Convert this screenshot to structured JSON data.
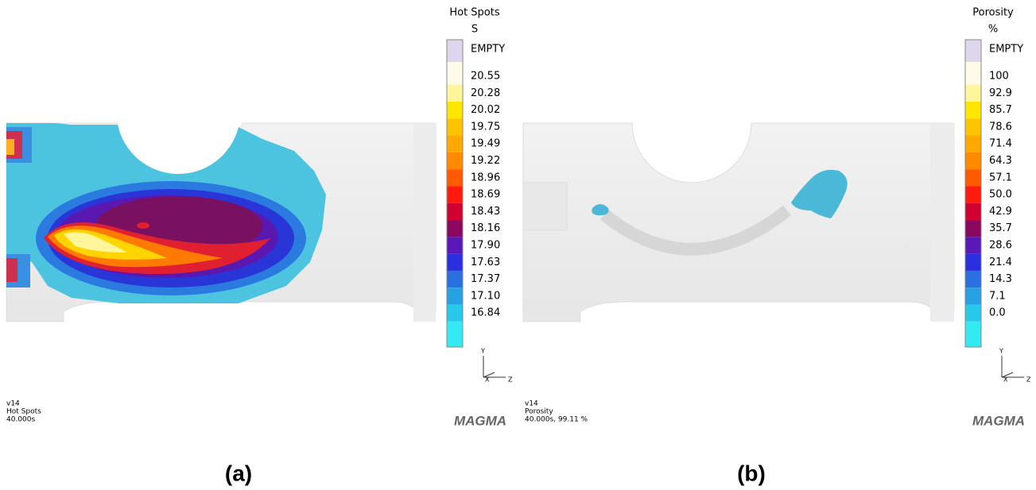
{
  "panels": [
    {
      "legend": {
        "title": "Hot Spots",
        "unit": "S",
        "labels": [
          "EMPTY",
          "20.55",
          "20.28",
          "20.02",
          "19.75",
          "19.49",
          "19.22",
          "18.96",
          "18.69",
          "18.43",
          "18.16",
          "17.90",
          "17.63",
          "17.37",
          "17.10",
          "16.84"
        ]
      },
      "info": [
        "v14",
        "Hot Spots",
        "40.000s"
      ],
      "axes": {
        "y": "Y",
        "x": "X",
        "z": "Z"
      },
      "logo": "MAGMA",
      "caption": "(a)"
    },
    {
      "legend": {
        "title": "Porosity",
        "unit": "%",
        "labels": [
          "EMPTY",
          "100",
          "92.9",
          "85.7",
          "78.6",
          "71.4",
          "64.3",
          "57.1",
          "50.0",
          "42.9",
          "35.7",
          "28.6",
          "21.4",
          "14.3",
          "7.1",
          "0.0"
        ]
      },
      "info": [
        "v14",
        "Porosity",
        "40.000s, 99.11 %"
      ],
      "axes": {
        "y": "Y",
        "x": "X",
        "z": "Z"
      },
      "logo": "MAGMA",
      "caption": "(b)"
    }
  ]
}
